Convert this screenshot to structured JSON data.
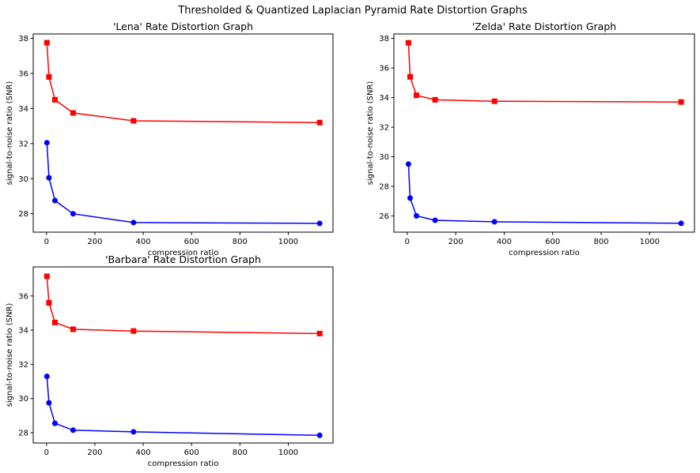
{
  "figure": {
    "suptitle": "Thresholded & Quantized Laplacian Pyramid Rate Distortion Graphs"
  },
  "colors": {
    "series_square": "#ff0000",
    "series_circle": "#0000ff"
  },
  "chart_data": [
    {
      "type": "line",
      "title": "'Lena' Rate Distortion Graph",
      "xlabel": "compression ratio",
      "ylabel": "signal-to-noise ratio (SNR)",
      "xlim": [
        -55,
        1185
      ],
      "ylim": [
        26.95,
        38.25
      ],
      "xticks": [
        0,
        200,
        400,
        600,
        800,
        1000
      ],
      "yticks": [
        28,
        30,
        32,
        34,
        36,
        38
      ],
      "grid": false,
      "series": [
        {
          "marker": "square",
          "color": "#ff0000",
          "x": [
            1.5,
            10,
            35,
            110,
            360,
            1130
          ],
          "y": [
            37.75,
            35.8,
            34.5,
            33.75,
            33.3,
            33.2
          ]
        },
        {
          "marker": "circle",
          "color": "#0000ff",
          "x": [
            1.5,
            10,
            35,
            110,
            360,
            1130
          ],
          "y": [
            32.05,
            30.05,
            28.75,
            28.0,
            27.5,
            27.45
          ]
        }
      ]
    },
    {
      "type": "line",
      "title": "'Zelda' Rate Distortion Graph",
      "xlabel": "compression ratio",
      "ylabel": "signal-to-noise ratio (SNR)",
      "xlim": [
        -55,
        1185
      ],
      "ylim": [
        24.9,
        38.3
      ],
      "xticks": [
        0,
        200,
        400,
        600,
        800,
        1000
      ],
      "yticks": [
        26,
        28,
        30,
        32,
        34,
        36,
        38
      ],
      "grid": false,
      "series": [
        {
          "marker": "square",
          "color": "#ff0000",
          "x": [
            5,
            12,
            38,
            115,
            360,
            1130
          ],
          "y": [
            37.7,
            35.4,
            34.15,
            33.85,
            33.75,
            33.7
          ]
        },
        {
          "marker": "circle",
          "color": "#0000ff",
          "x": [
            5,
            12,
            38,
            115,
            360,
            1130
          ],
          "y": [
            29.5,
            27.2,
            26.0,
            25.7,
            25.6,
            25.5
          ]
        }
      ]
    },
    {
      "type": "line",
      "title": "'Barbara' Rate Distortion Graph",
      "xlabel": "compression ratio",
      "ylabel": "signal-to-noise ratio (SNR)",
      "xlim": [
        -55,
        1185
      ],
      "ylim": [
        27.4,
        37.7
      ],
      "xticks": [
        0,
        200,
        400,
        600,
        800,
        1000
      ],
      "yticks": [
        28,
        30,
        32,
        34,
        36
      ],
      "grid": false,
      "series": [
        {
          "marker": "square",
          "color": "#ff0000",
          "x": [
            1.5,
            10,
            35,
            110,
            360,
            1130
          ],
          "y": [
            37.15,
            35.6,
            34.45,
            34.05,
            33.95,
            33.8
          ]
        },
        {
          "marker": "circle",
          "color": "#0000ff",
          "x": [
            1.5,
            10,
            35,
            110,
            360,
            1130
          ],
          "y": [
            31.3,
            29.75,
            28.55,
            28.15,
            28.05,
            27.85
          ]
        }
      ]
    }
  ]
}
